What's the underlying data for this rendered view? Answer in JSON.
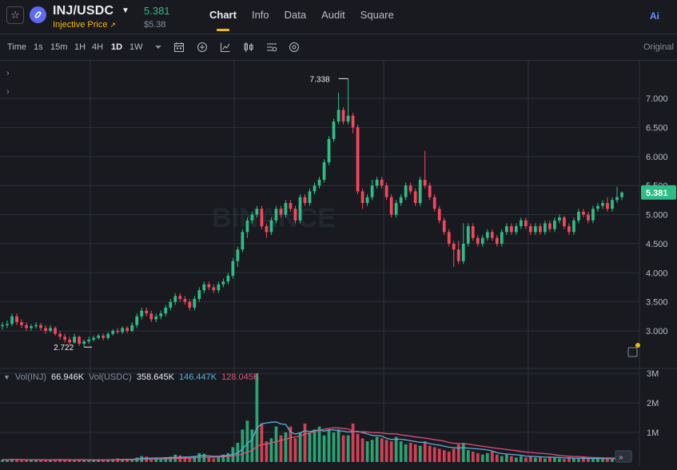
{
  "header": {
    "pair": "INJ/USDC",
    "subtitle": "Injective Price",
    "price": "5.381",
    "price_usd": "$5.38",
    "tabs": [
      {
        "label": "Chart",
        "active": true
      },
      {
        "label": "Info",
        "active": false
      },
      {
        "label": "Data",
        "active": false
      },
      {
        "label": "Audit",
        "active": false
      },
      {
        "label": "Square",
        "active": false
      }
    ],
    "ai_label": "Ai"
  },
  "toolbar": {
    "timeframes": [
      {
        "label": "Time",
        "active": false
      },
      {
        "label": "1s",
        "active": false
      },
      {
        "label": "15m",
        "active": false
      },
      {
        "label": "1H",
        "active": false
      },
      {
        "label": "4H",
        "active": false
      },
      {
        "label": "1D",
        "active": true
      },
      {
        "label": "1W",
        "active": false
      }
    ],
    "icons": [
      "dropdown-icon",
      "calendar-icon",
      "add-indicator-icon",
      "chart-type-icon",
      "candlestick-settings-icon",
      "layout-settings-icon",
      "hide-icon"
    ],
    "original_label": "Original"
  },
  "chart": {
    "price_axis": [
      "7.000",
      "6.500",
      "6.000",
      "5.500",
      "5.000",
      "4.500",
      "4.000",
      "3.500",
      "3.000"
    ],
    "current_price_label": "5.381",
    "high_label": "7.338",
    "low_label": "2.722",
    "watermark": "BINANCE",
    "colors": {
      "up": "#2ebd85",
      "down": "#f6465d",
      "ma_blue": "#5ab0d8",
      "ma_pink": "#e0507a"
    }
  },
  "volume": {
    "legend": [
      {
        "label": "Vol(INJ)",
        "value": "66.946K",
        "color": "#eaecef"
      },
      {
        "label": "Vol(USDC)",
        "value": "358.645K",
        "color": "#eaecef"
      },
      {
        "label": "",
        "value": "146.447K",
        "color": "#5ab0d8"
      },
      {
        "label": "",
        "value": "128.045K",
        "color": "#e0507a"
      }
    ],
    "axis": [
      "3M",
      "2M",
      "1M"
    ]
  },
  "chart_data": {
    "type": "candlestick",
    "x": [
      "1",
      "2",
      "3",
      "4",
      "5",
      "6",
      "7",
      "8",
      "9",
      "10",
      "11",
      "12",
      "13",
      "14",
      "15",
      "16",
      "17",
      "18",
      "19",
      "20",
      "21",
      "22",
      "23",
      "24",
      "25",
      "26",
      "27",
      "28",
      "29",
      "30",
      "31",
      "32",
      "33",
      "34",
      "35",
      "36",
      "37",
      "38",
      "39",
      "40",
      "41",
      "42",
      "43",
      "44",
      "45",
      "46",
      "47",
      "48",
      "49",
      "50",
      "51",
      "52",
      "53",
      "54",
      "55",
      "56",
      "57",
      "58",
      "59",
      "60",
      "61",
      "62",
      "63",
      "64",
      "65",
      "66",
      "67",
      "68",
      "69",
      "70",
      "71",
      "72",
      "73",
      "74",
      "75",
      "76",
      "77",
      "78",
      "79",
      "80",
      "81",
      "82",
      "83",
      "84",
      "85",
      "86",
      "87",
      "88",
      "89",
      "90",
      "91",
      "92",
      "93",
      "94",
      "95",
      "96",
      "97",
      "98",
      "99",
      "100",
      "101",
      "102",
      "103",
      "104",
      "105",
      "106",
      "107",
      "108",
      "109",
      "110",
      "111",
      "112",
      "113",
      "114",
      "115",
      "116",
      "117",
      "118",
      "119",
      "120",
      "121",
      "122",
      "123",
      "124",
      "125",
      "126",
      "127",
      "128",
      "129",
      "130"
    ],
    "open": [
      3.08,
      3.1,
      3.12,
      3.25,
      3.15,
      3.1,
      3.05,
      3.08,
      3.1,
      3.05,
      3.0,
      3.05,
      2.95,
      2.9,
      2.85,
      2.8,
      2.9,
      2.78,
      2.82,
      2.85,
      2.88,
      2.92,
      2.88,
      2.95,
      3.0,
      2.98,
      3.05,
      3.0,
      3.1,
      3.25,
      3.35,
      3.3,
      3.2,
      3.25,
      3.3,
      3.4,
      3.5,
      3.6,
      3.55,
      3.5,
      3.4,
      3.55,
      3.7,
      3.8,
      3.75,
      3.7,
      3.8,
      3.85,
      3.95,
      4.2,
      4.4,
      4.7,
      4.9,
      5.0,
      5.1,
      4.8,
      4.7,
      4.9,
      5.1,
      5.0,
      5.2,
      5.1,
      4.9,
      5.3,
      5.2,
      5.4,
      5.5,
      5.6,
      5.9,
      6.3,
      6.6,
      6.8,
      6.6,
      6.7,
      6.5,
      5.4,
      5.2,
      5.3,
      5.5,
      5.6,
      5.5,
      5.3,
      5.0,
      5.2,
      5.3,
      5.5,
      5.4,
      5.2,
      5.6,
      5.5,
      5.3,
      5.1,
      4.9,
      4.7,
      4.5,
      4.4,
      4.2,
      4.5,
      4.8,
      4.6,
      4.5,
      4.6,
      4.7,
      4.6,
      4.5,
      4.7,
      4.8,
      4.7,
      4.8,
      4.9,
      4.8,
      4.7,
      4.8,
      4.7,
      4.85,
      4.75,
      4.9,
      4.95,
      4.8,
      4.7,
      4.9,
      5.05,
      5.0,
      4.9,
      5.1,
      5.15,
      5.2,
      5.1,
      5.25,
      5.3
    ],
    "close": [
      3.1,
      3.12,
      3.25,
      3.15,
      3.1,
      3.05,
      3.08,
      3.1,
      3.05,
      3.0,
      3.05,
      2.95,
      2.9,
      2.85,
      2.8,
      2.9,
      2.78,
      2.82,
      2.85,
      2.88,
      2.92,
      2.88,
      2.95,
      3.0,
      2.98,
      3.05,
      3.0,
      3.1,
      3.25,
      3.35,
      3.3,
      3.2,
      3.25,
      3.3,
      3.4,
      3.5,
      3.6,
      3.55,
      3.5,
      3.4,
      3.55,
      3.7,
      3.8,
      3.75,
      3.7,
      3.8,
      3.85,
      3.95,
      4.2,
      4.4,
      4.7,
      4.9,
      5.0,
      5.1,
      4.8,
      4.7,
      4.9,
      5.1,
      5.0,
      5.2,
      5.1,
      4.9,
      5.3,
      5.2,
      5.4,
      5.5,
      5.6,
      5.9,
      6.3,
      6.6,
      6.8,
      6.6,
      6.7,
      6.5,
      5.4,
      5.2,
      5.3,
      5.5,
      5.6,
      5.5,
      5.3,
      5.0,
      5.2,
      5.3,
      5.5,
      5.4,
      5.2,
      5.6,
      5.5,
      5.3,
      5.1,
      4.9,
      4.7,
      4.5,
      4.4,
      4.2,
      4.5,
      4.8,
      4.6,
      4.5,
      4.6,
      4.7,
      4.6,
      4.5,
      4.7,
      4.8,
      4.7,
      4.8,
      4.9,
      4.8,
      4.7,
      4.8,
      4.7,
      4.85,
      4.75,
      4.9,
      4.95,
      4.8,
      4.7,
      4.9,
      5.05,
      5.0,
      4.9,
      5.1,
      5.15,
      5.2,
      5.1,
      5.25,
      5.3,
      5.381
    ],
    "high": [
      3.15,
      3.18,
      3.3,
      3.3,
      3.2,
      3.15,
      3.12,
      3.15,
      3.14,
      3.1,
      3.1,
      3.08,
      3.0,
      2.95,
      2.9,
      2.95,
      2.92,
      2.85,
      2.9,
      2.92,
      2.95,
      2.96,
      2.98,
      3.03,
      3.05,
      3.08,
      3.08,
      3.15,
      3.3,
      3.4,
      3.4,
      3.35,
      3.3,
      3.35,
      3.45,
      3.55,
      3.65,
      3.65,
      3.6,
      3.55,
      3.6,
      3.75,
      3.85,
      3.85,
      3.8,
      3.85,
      3.9,
      4.0,
      4.25,
      4.45,
      4.75,
      4.95,
      5.05,
      5.15,
      5.15,
      4.85,
      4.95,
      5.15,
      5.15,
      5.25,
      5.25,
      5.15,
      5.35,
      5.35,
      5.45,
      5.55,
      5.65,
      5.95,
      6.35,
      6.65,
      7.1,
      6.85,
      7.338,
      6.75,
      6.55,
      5.45,
      5.35,
      5.6,
      5.65,
      5.65,
      5.55,
      5.35,
      5.25,
      5.35,
      5.55,
      5.55,
      5.45,
      5.65,
      6.1,
      5.55,
      5.35,
      5.15,
      4.95,
      4.75,
      4.55,
      4.55,
      4.85,
      4.85,
      4.85,
      4.65,
      4.65,
      4.75,
      4.75,
      4.65,
      4.75,
      4.85,
      4.85,
      4.85,
      4.95,
      4.95,
      4.85,
      4.85,
      4.85,
      4.9,
      4.9,
      4.95,
      5.0,
      4.98,
      4.85,
      4.95,
      5.1,
      5.1,
      5.05,
      5.15,
      5.2,
      5.25,
      5.3,
      5.3,
      5.48,
      5.4
    ],
    "low": [
      3.02,
      3.05,
      3.08,
      3.1,
      3.05,
      3.0,
      3.0,
      3.04,
      3.0,
      2.95,
      2.97,
      2.92,
      2.85,
      2.8,
      2.76,
      2.78,
      2.74,
      2.722,
      2.78,
      2.82,
      2.85,
      2.84,
      2.85,
      2.92,
      2.95,
      2.95,
      2.96,
      2.98,
      3.05,
      3.2,
      3.25,
      3.15,
      3.15,
      3.2,
      3.25,
      3.35,
      3.45,
      3.5,
      3.45,
      3.35,
      3.35,
      3.5,
      3.65,
      3.7,
      3.65,
      3.65,
      3.75,
      3.8,
      3.9,
      4.1,
      4.35,
      4.6,
      4.85,
      4.95,
      4.75,
      4.6,
      4.65,
      4.85,
      4.95,
      4.95,
      5.05,
      4.85,
      4.85,
      5.15,
      5.15,
      5.35,
      5.45,
      5.55,
      5.85,
      6.25,
      6.55,
      6.55,
      6.55,
      6.4,
      5.35,
      5.1,
      5.15,
      5.25,
      5.45,
      5.45,
      5.25,
      4.95,
      4.95,
      5.15,
      5.25,
      5.35,
      5.15,
      5.15,
      5.45,
      5.25,
      5.05,
      4.85,
      4.65,
      4.45,
      4.1,
      4.15,
      4.15,
      4.45,
      4.55,
      4.45,
      4.45,
      4.55,
      4.55,
      4.45,
      4.45,
      4.65,
      4.65,
      4.65,
      4.75,
      4.75,
      4.65,
      4.65,
      4.65,
      4.65,
      4.7,
      4.7,
      4.85,
      4.75,
      4.65,
      4.65,
      4.85,
      4.95,
      4.85,
      4.85,
      5.05,
      5.1,
      5.05,
      5.05,
      5.2,
      5.25
    ],
    "volume": [
      0.08,
      0.07,
      0.1,
      0.09,
      0.06,
      0.07,
      0.08,
      0.06,
      0.07,
      0.05,
      0.08,
      0.09,
      0.1,
      0.07,
      0.06,
      0.05,
      0.09,
      0.06,
      0.05,
      0.08,
      0.07,
      0.06,
      0.09,
      0.1,
      0.12,
      0.08,
      0.1,
      0.09,
      0.15,
      0.2,
      0.18,
      0.1,
      0.12,
      0.11,
      0.14,
      0.18,
      0.25,
      0.22,
      0.15,
      0.14,
      0.2,
      0.3,
      0.28,
      0.15,
      0.12,
      0.18,
      0.25,
      0.3,
      0.5,
      0.65,
      1.1,
      1.4,
      1.1,
      3.0,
      1.3,
      0.7,
      0.8,
      1.2,
      0.9,
      1.0,
      1.2,
      0.8,
      1.0,
      1.3,
      1.0,
      1.1,
      1.2,
      0.9,
      1.1,
      1.0,
      1.1,
      0.9,
      0.9,
      1.3,
      0.95,
      0.8,
      0.7,
      0.75,
      0.85,
      0.8,
      0.75,
      0.7,
      0.85,
      0.7,
      0.6,
      0.65,
      0.6,
      0.55,
      0.7,
      0.55,
      0.5,
      0.45,
      0.4,
      0.35,
      0.45,
      0.6,
      0.65,
      0.4,
      0.35,
      0.3,
      0.25,
      0.3,
      0.35,
      0.25,
      0.2,
      0.25,
      0.2,
      0.15,
      0.2,
      0.15,
      0.2,
      0.15,
      0.18,
      0.12,
      0.15,
      0.14,
      0.12,
      0.1,
      0.15,
      0.12,
      0.1,
      0.15,
      0.12,
      0.1,
      0.12,
      0.1,
      0.12,
      0.1,
      0.12,
      0.08
    ],
    "ylim": [
      2.5,
      7.6
    ],
    "ylabel": "",
    "xlabel": ""
  }
}
